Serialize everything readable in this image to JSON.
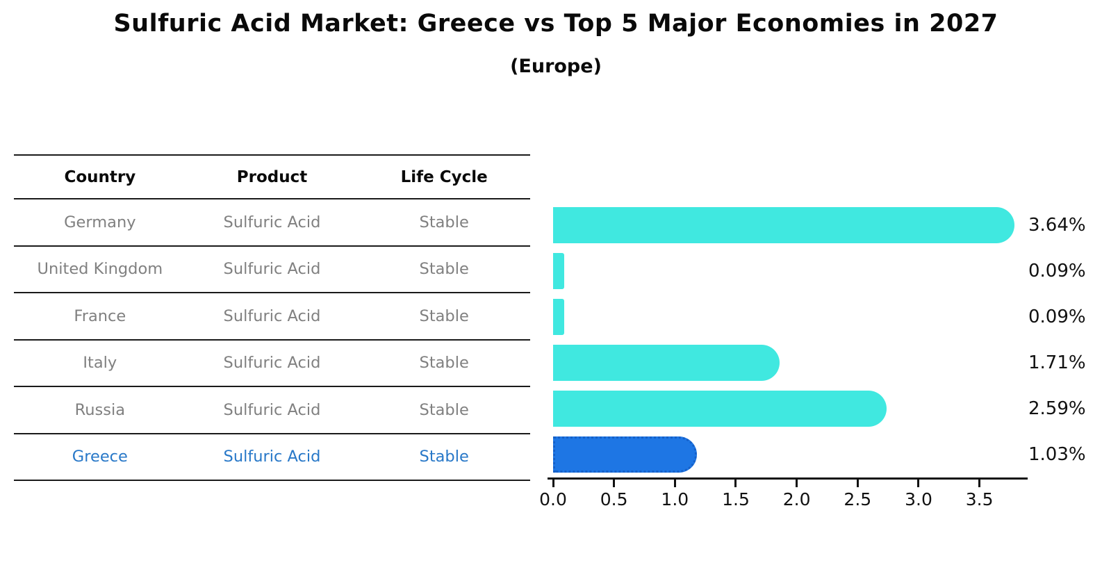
{
  "title": "Sulfuric Acid Market: Greece vs Top 5 Major Economies in 2027",
  "subtitle": "(Europe)",
  "table": {
    "headers": [
      "Country",
      "Product",
      "Life Cycle"
    ],
    "rows": [
      {
        "country": "Germany",
        "product": "Sulfuric Acid",
        "life_cycle": "Stable",
        "highlight": false
      },
      {
        "country": "United Kingdom",
        "product": "Sulfuric Acid",
        "life_cycle": "Stable",
        "highlight": false
      },
      {
        "country": "France",
        "product": "Sulfuric Acid",
        "life_cycle": "Stable",
        "highlight": false
      },
      {
        "country": "Italy",
        "product": "Sulfuric Acid",
        "life_cycle": "Stable",
        "highlight": false
      },
      {
        "country": "Russia",
        "product": "Sulfuric Acid",
        "life_cycle": "Stable",
        "highlight": true
      },
      {
        "country": "Greece",
        "product": "Sulfuric Acid",
        "life_cycle": "Stable",
        "highlight": true
      }
    ]
  },
  "chart_data": {
    "type": "bar",
    "orientation": "horizontal",
    "title": "Sulfuric Acid Market: Greece vs Top 5 Major Economies in 2027",
    "subtitle": "(Europe)",
    "categories": [
      "Germany",
      "United Kingdom",
      "France",
      "Italy",
      "Russia",
      "Greece"
    ],
    "values": [
      3.64,
      0.09,
      0.09,
      1.71,
      2.59,
      1.03
    ],
    "value_labels": [
      "3.64%",
      "0.09%",
      "0.09%",
      "1.71%",
      "2.59%",
      "1.03%"
    ],
    "x_ticks": [
      "0.0",
      "0.5",
      "1.0",
      "1.5",
      "2.0",
      "2.5",
      "3.0",
      "3.5"
    ],
    "xlim": [
      0,
      3.85
    ],
    "xlabel": "",
    "ylabel": "",
    "grid": false,
    "legend": false,
    "highlight_index": 5
  },
  "colors": {
    "bar": "#40e8e0",
    "bar_highlight": "#1e76e4",
    "bar_highlight_border": "#1560c8",
    "table_text": "#808080",
    "highlight_text": "#2878c8",
    "line": "#1a1a1a",
    "axis": "#111111",
    "background": "#ffffff"
  }
}
